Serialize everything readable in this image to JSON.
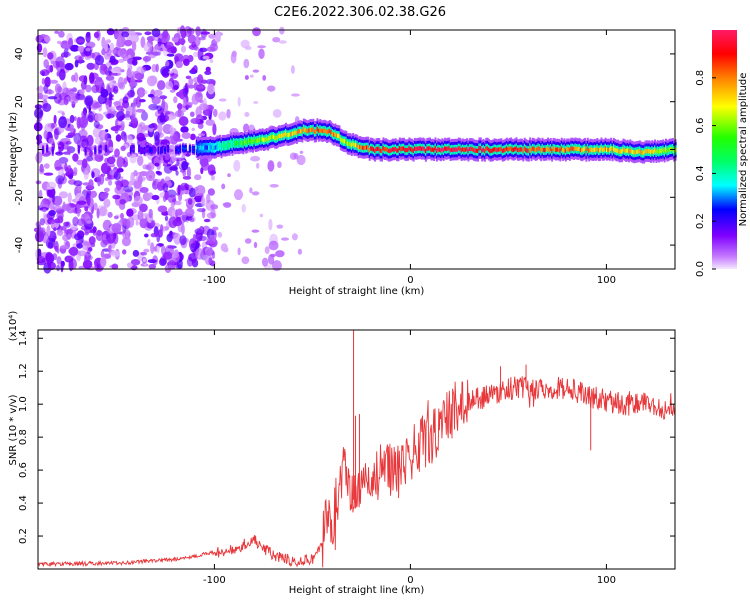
{
  "title": "C2E6.2022.306.02.38.G26",
  "chart_data": [
    {
      "type": "heatmap",
      "xlabel": "Height of straight line (km)",
      "ylabel": "Frequency (Hz)",
      "xlim": [
        -190,
        135
      ],
      "ylim": [
        -50,
        50
      ],
      "xticks": [
        -100,
        0,
        100
      ],
      "yticks": [
        -40,
        -20,
        0,
        20,
        40
      ],
      "grid": false,
      "colorbar": {
        "label": "Normalized spectral amplitude",
        "range": [
          0,
          1
        ],
        "ticks": [
          "0.0",
          "0.2",
          "0.4",
          "0.6",
          "0.8"
        ]
      },
      "ridge": {
        "x": [
          -190,
          -120,
          -100,
          -85,
          -70,
          -55,
          -45,
          -40,
          -35,
          -30,
          -25,
          -20,
          -10,
          0,
          20,
          50,
          80,
          100,
          120,
          135
        ],
        "freq": [
          0,
          0,
          1,
          3,
          5,
          8,
          8,
          7,
          4,
          2,
          1,
          0,
          0,
          0,
          0,
          0,
          0,
          0,
          -1,
          0
        ],
        "amplitude": [
          0.15,
          0.2,
          0.35,
          0.55,
          0.65,
          0.75,
          0.85,
          0.8,
          0.6,
          0.7,
          0.8,
          0.9,
          0.92,
          0.95,
          0.95,
          0.9,
          0.8,
          0.75,
          0.7,
          0.6
        ]
      }
    },
    {
      "type": "line",
      "xlabel": "Height of straight line (km)",
      "ylabel": "SNR (10 * v/v)",
      "y_multiplier": "(x10⁴)",
      "xlim": [
        -190,
        135
      ],
      "ylim": [
        0,
        14500
      ],
      "xticks": [
        -100,
        0,
        100
      ],
      "yticks": [
        2000,
        4000,
        6000,
        8000,
        10000,
        12000,
        14000
      ],
      "ytick_labels": [
        "0.2",
        "0.4",
        "0.6",
        "0.8",
        "1.0",
        "1.2",
        "1.4"
      ],
      "color": "#e8373a",
      "x": [
        -190,
        -150,
        -120,
        -100,
        -90,
        -80,
        -75,
        -70,
        -60,
        -50,
        -45,
        -42,
        -40,
        -38,
        -35,
        -33,
        -30,
        -25,
        -20,
        -15,
        -10,
        -5,
        0,
        5,
        10,
        15,
        20,
        30,
        40,
        50,
        60,
        80,
        90,
        100,
        110,
        120,
        135
      ],
      "values": [
        300,
        350,
        600,
        1000,
        1200,
        1800,
        1300,
        800,
        500,
        600,
        1500,
        4000,
        2500,
        4000,
        5500,
        6000,
        4000,
        5000,
        5000,
        6000,
        6000,
        6500,
        7000,
        7500,
        8000,
        8500,
        9500,
        10200,
        10500,
        11000,
        11000,
        11000,
        10500,
        10200,
        10000,
        10000,
        9500
      ],
      "spikes": [
        {
          "x": -29,
          "y": 14500
        },
        {
          "x": -28,
          "y": 9300
        },
        {
          "x": -26,
          "y": 9400
        },
        {
          "x": 46,
          "y": 12300
        },
        {
          "x": 59,
          "y": 12400
        },
        {
          "x": 92,
          "y": 7200
        }
      ]
    }
  ]
}
